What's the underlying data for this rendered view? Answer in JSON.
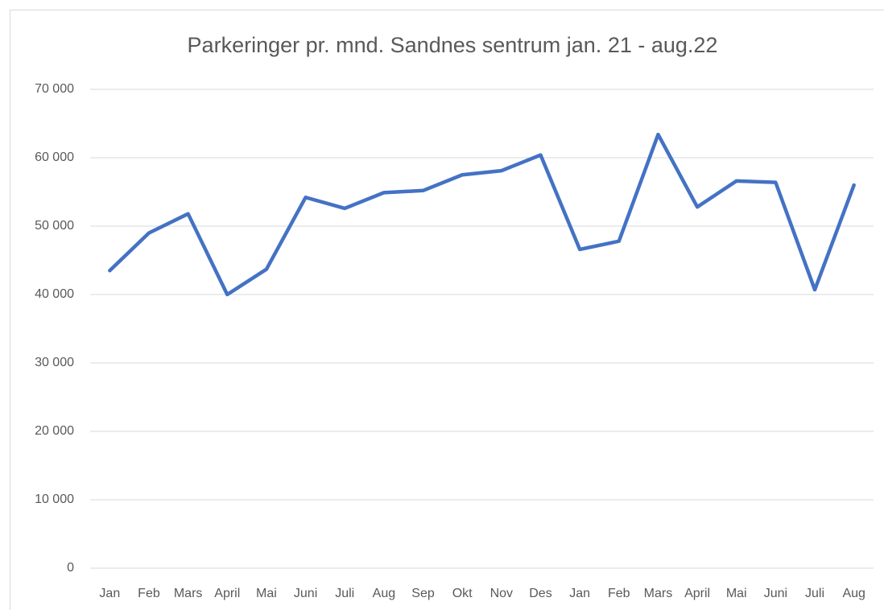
{
  "chart_data": {
    "type": "line",
    "title": "Parkeringer pr. mnd. Sandnes sentrum jan. 21 - aug.22",
    "categories": [
      "Jan",
      "Feb",
      "Mars",
      "April",
      "Mai",
      "Juni",
      "Juli",
      "Aug",
      "Sep",
      "Okt",
      "Nov",
      "Des",
      "Jan",
      "Feb",
      "Mars",
      "April",
      "Mai",
      "Juni",
      "Juli",
      "Aug"
    ],
    "series": [
      {
        "name": "Parkeringer",
        "color": "#4472c4",
        "values": [
          43500,
          49000,
          51800,
          40000,
          43700,
          54200,
          52600,
          54900,
          55200,
          57500,
          58100,
          60400,
          46600,
          47800,
          63400,
          52800,
          56600,
          56400,
          40700,
          56000
        ]
      }
    ],
    "ylim": [
      0,
      70000
    ],
    "yticks": [
      0,
      {
        "value": 10000,
        "label": "10 000"
      },
      {
        "value": 20000,
        "label": "20 000"
      },
      {
        "value": 30000,
        "label": "30 000"
      },
      {
        "value": 40000,
        "label": "40 000"
      },
      {
        "value": 50000,
        "label": "50 000"
      },
      {
        "value": 60000,
        "label": "60 000"
      },
      {
        "value": 70000,
        "label": "70 000"
      }
    ],
    "grid": true
  }
}
